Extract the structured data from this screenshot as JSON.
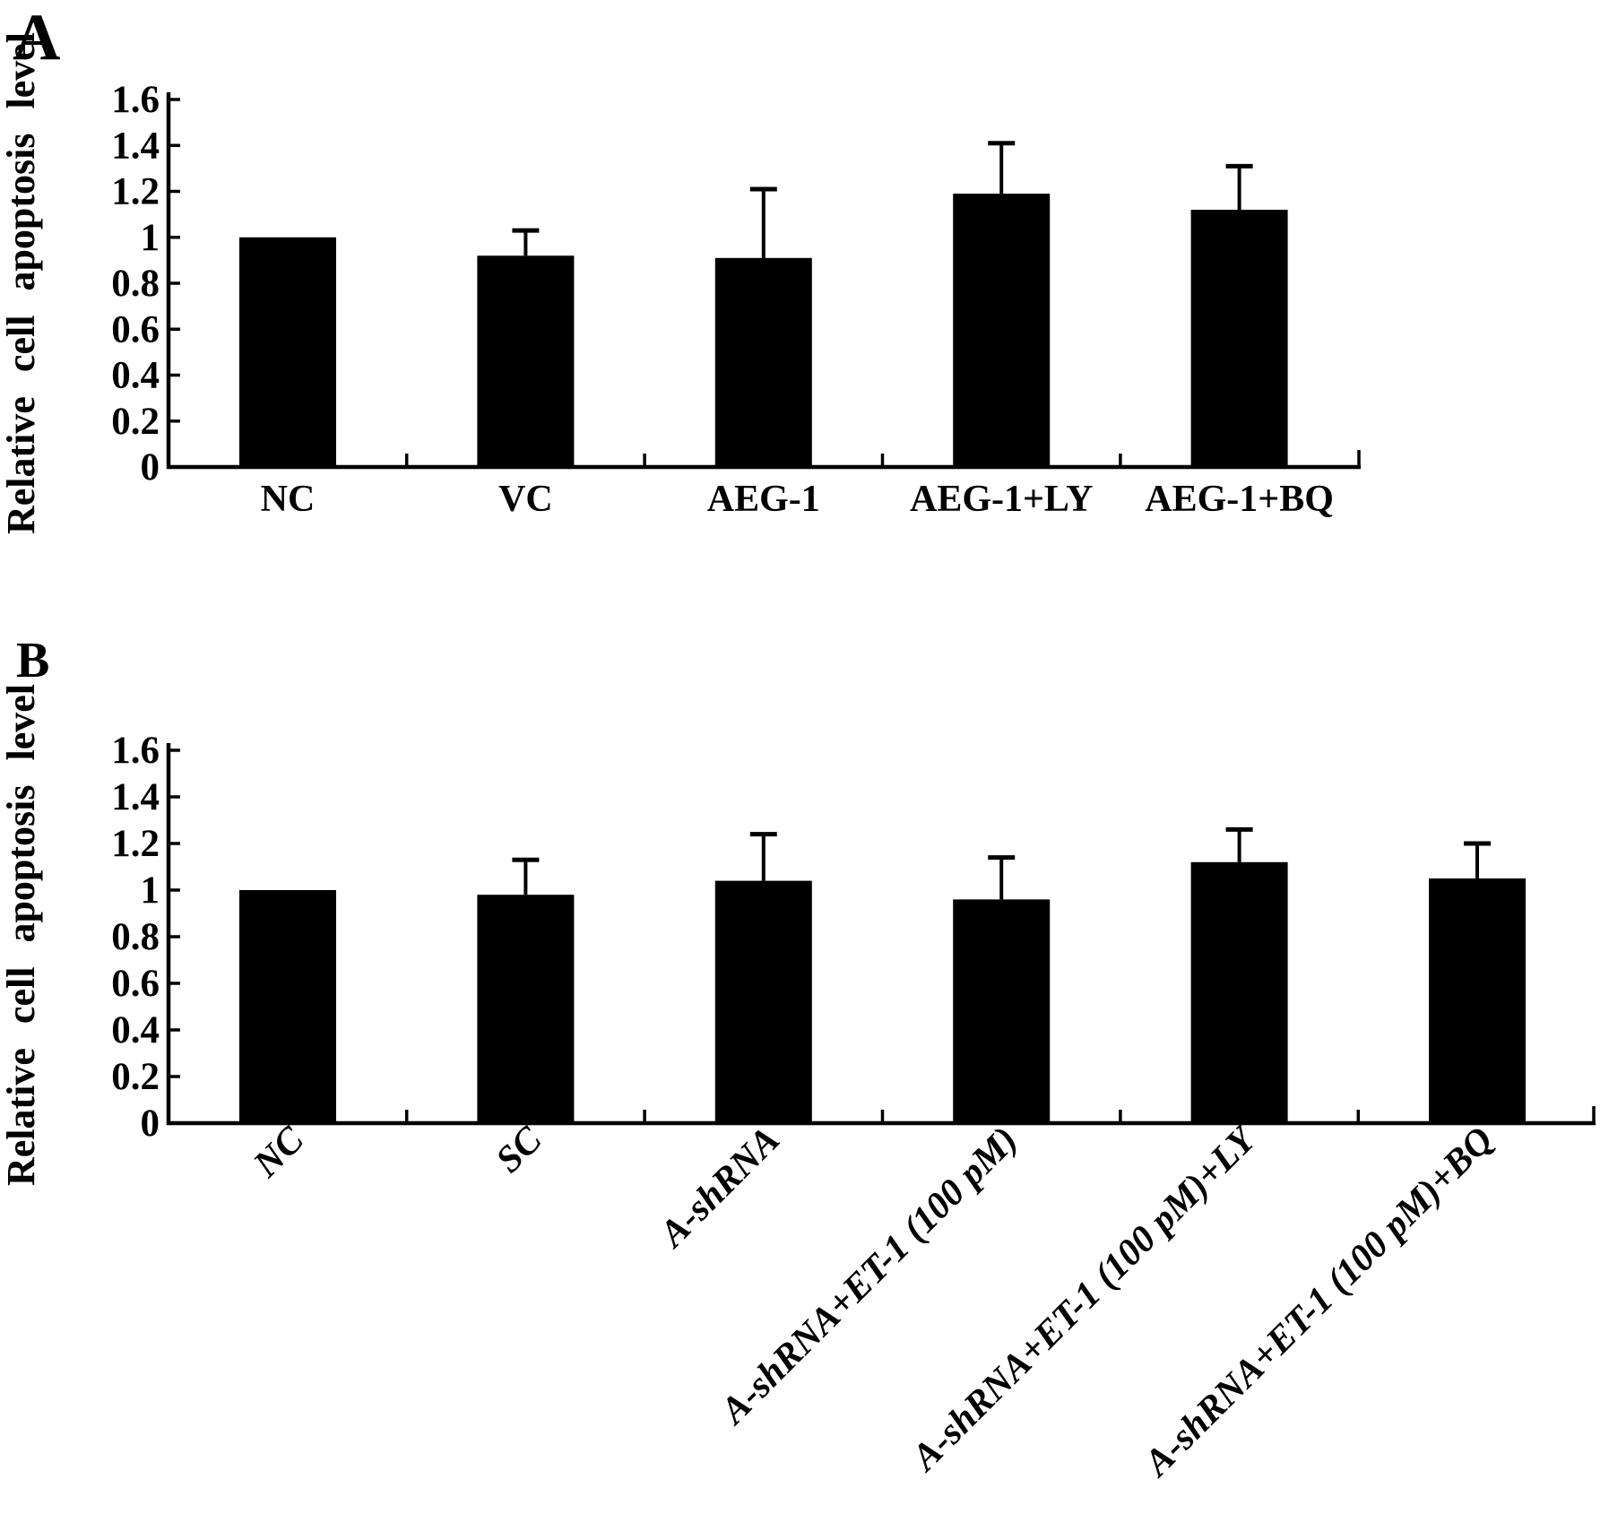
{
  "page": {
    "background": "#ffffff",
    "ink": "#000000"
  },
  "chart_data": [
    {
      "type": "bar",
      "panel_label": "A",
      "title": "",
      "xlabel": "",
      "ylabel": "Relative cell apoptosis level",
      "categories": [
        "NC",
        "VC",
        "AEG-1",
        "AEG-1+LY",
        "AEG-1+BQ"
      ],
      "values": [
        1.0,
        0.92,
        0.91,
        1.19,
        1.12
      ],
      "errors_plus": [
        0,
        0.11,
        0.3,
        0.22,
        0.19
      ],
      "yticks": [
        0,
        0.2,
        0.4,
        0.6,
        0.8,
        1,
        1.2,
        1.4,
        1.6
      ],
      "ytick_labels": [
        "0",
        "0.2",
        "0.4",
        "0.6",
        "0.8",
        "1",
        "1.2",
        "1.4",
        "1.6"
      ],
      "ylim": [
        0,
        1.6
      ],
      "bar_color": "#000000",
      "grid": false,
      "legend": null,
      "xtick_rotation_deg": 0
    },
    {
      "type": "bar",
      "panel_label": "B",
      "title": "",
      "xlabel": "",
      "ylabel": "Relative cell apoptosis level",
      "categories": [
        "NC",
        "SC",
        "A-shRNA",
        "A-shRNA+ET-1 (100 pM)",
        "A-shRNA+ET-1 (100 pM)+LY",
        "A-shRNA+ET-1 (100 pM)+BQ"
      ],
      "values": [
        1.0,
        0.98,
        1.04,
        0.96,
        1.12,
        1.05
      ],
      "errors_plus": [
        0,
        0.15,
        0.2,
        0.18,
        0.14,
        0.15
      ],
      "yticks": [
        0,
        0.2,
        0.4,
        0.6,
        0.8,
        1,
        1.2,
        1.4,
        1.6
      ],
      "ytick_labels": [
        "0",
        "0.2",
        "0.4",
        "0.6",
        "0.8",
        "1",
        "1.2",
        "1.4",
        "1.6"
      ],
      "ylim": [
        0,
        1.6
      ],
      "bar_color": "#000000",
      "grid": false,
      "legend": null,
      "xtick_rotation_deg": 45
    }
  ]
}
